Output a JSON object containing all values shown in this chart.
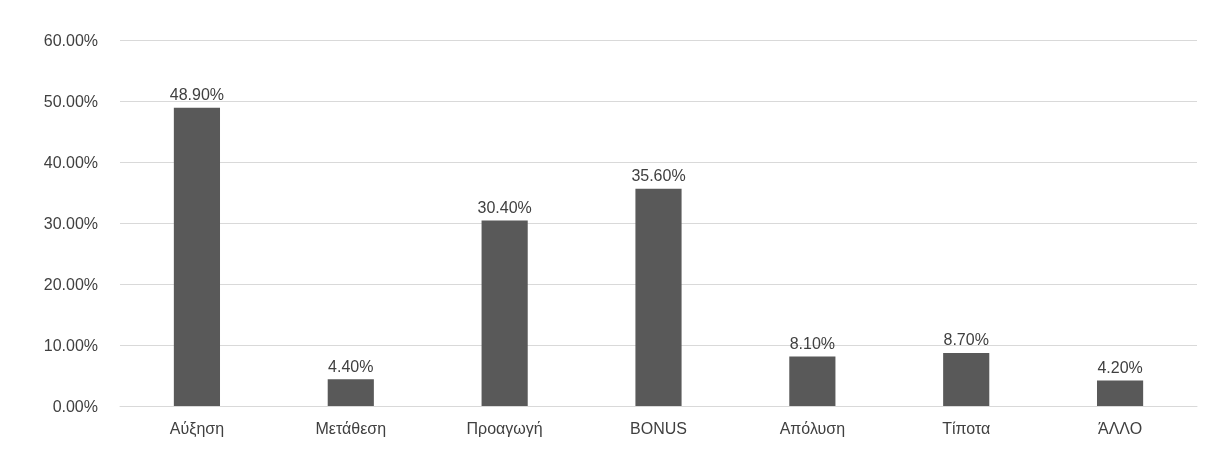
{
  "chart_data": {
    "type": "bar",
    "categories": [
      "Αύξηση",
      "Μετάθεση",
      "Προαγωγή",
      "BONUS",
      "Απόλυση",
      "Τίποτα",
      "ΆΛΛΟ"
    ],
    "values": [
      48.9,
      4.4,
      30.4,
      35.6,
      8.1,
      8.7,
      4.2
    ],
    "value_labels": [
      "48.90%",
      "4.40%",
      "30.40%",
      "35.60%",
      "8.10%",
      "8.70%",
      "4.20%"
    ],
    "color": "#595959",
    "ylim": [
      0,
      60
    ],
    "yticks": [
      {
        "value": 0,
        "label": "0.00%"
      },
      {
        "value": 10,
        "label": "10.00%"
      },
      {
        "value": 20,
        "label": "20.00%"
      },
      {
        "value": 30,
        "label": "30.00%"
      },
      {
        "value": 40,
        "label": "40.00%"
      },
      {
        "value": 50,
        "label": "50.00%"
      },
      {
        "value": 60,
        "label": "60.00%"
      }
    ],
    "grid": "y"
  }
}
